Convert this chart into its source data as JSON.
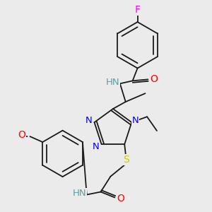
{
  "background_color": "#ebebeb",
  "figsize": [
    3.0,
    3.0
  ],
  "dpi": 100,
  "colors": {
    "bond": "#1a1a1a",
    "F": "#ff00ff",
    "O": "#ff0000",
    "N": "#0000ee",
    "S": "#cccc00",
    "NH": "#5f9ea0",
    "methoxy_O": "#ff0000"
  }
}
